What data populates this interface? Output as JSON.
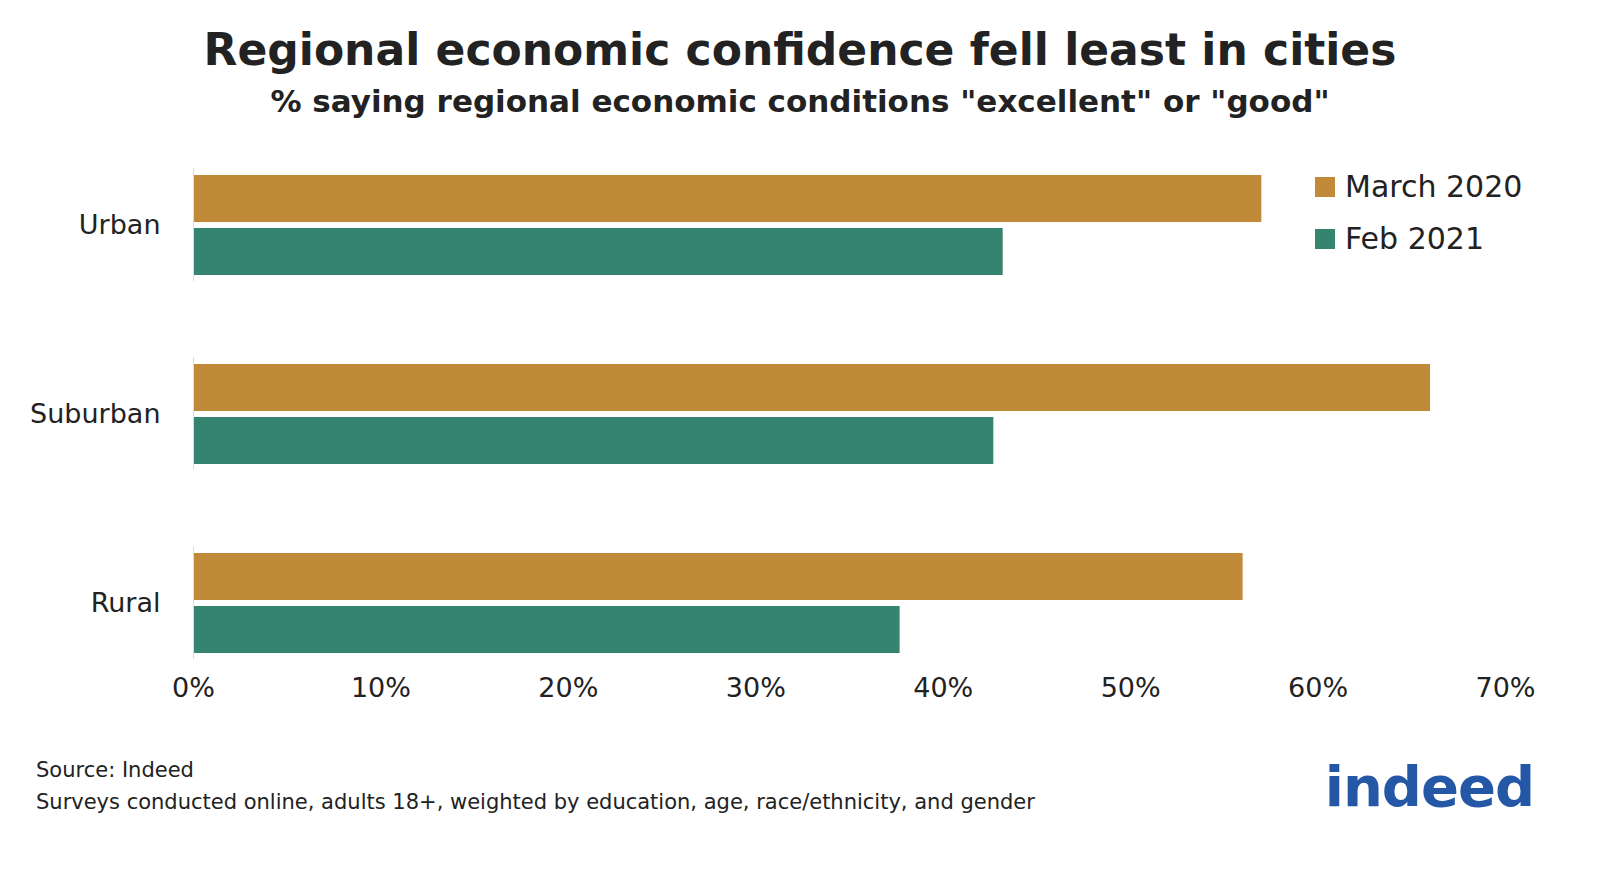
{
  "chart_data": {
    "type": "bar",
    "orientation": "horizontal",
    "title": "Regional economic confidence fell least in cities",
    "subtitle": "% saying regional economic conditions \"excellent\" or \"good\"",
    "categories": [
      "Urban",
      "Suburban",
      "Rural"
    ],
    "series": [
      {
        "name": "March 2020",
        "color": "#c18a38",
        "values": [
          57,
          66,
          56
        ]
      },
      {
        "name": "Feb 2021",
        "color": "#348470",
        "values": [
          43.2,
          42.7,
          37.7
        ]
      }
    ],
    "xlim": [
      0,
      70
    ],
    "xticks": [
      {
        "value": 0,
        "label": "0%"
      },
      {
        "value": 10,
        "label": "10%"
      },
      {
        "value": 20,
        "label": "20%"
      },
      {
        "value": 30,
        "label": "30%"
      },
      {
        "value": 40,
        "label": "40%"
      },
      {
        "value": 50,
        "label": "50%"
      },
      {
        "value": 60,
        "label": "60%"
      },
      {
        "value": 70,
        "label": "70%"
      }
    ],
    "grid": false,
    "legend": "top-right",
    "source": "Source: Indeed",
    "note": "Surveys conducted online, adults 18+, weighted by education, age, race/ethnicity, and gender",
    "logo": "indeed"
  }
}
